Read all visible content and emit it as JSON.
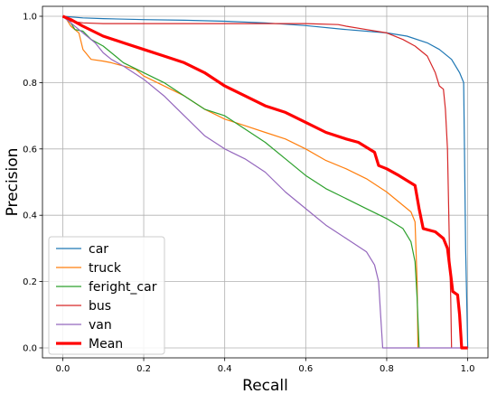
{
  "chart_data": {
    "type": "line",
    "title": "",
    "xlabel": "Recall",
    "ylabel": "Precision",
    "xlim": [
      -0.05,
      1.05
    ],
    "ylim": [
      -0.03,
      1.03
    ],
    "xticks": [
      "0.0",
      "0.2",
      "0.4",
      "0.6",
      "0.8",
      "1.0"
    ],
    "yticks": [
      "0.0",
      "0.2",
      "0.4",
      "0.6",
      "0.8",
      "1.0"
    ],
    "grid": true,
    "legend": "lower-left",
    "series": [
      {
        "name": "car",
        "color": "#1f77b4",
        "width": 1.2,
        "points": [
          [
            0,
            1.0
          ],
          [
            0.05,
            0.995
          ],
          [
            0.1,
            0.993
          ],
          [
            0.2,
            0.99
          ],
          [
            0.3,
            0.988
          ],
          [
            0.4,
            0.985
          ],
          [
            0.5,
            0.98
          ],
          [
            0.6,
            0.972
          ],
          [
            0.7,
            0.96
          ],
          [
            0.8,
            0.95
          ],
          [
            0.85,
            0.94
          ],
          [
            0.9,
            0.92
          ],
          [
            0.93,
            0.9
          ],
          [
            0.96,
            0.87
          ],
          [
            0.98,
            0.83
          ],
          [
            0.99,
            0.8
          ],
          [
            0.992,
            0.6
          ],
          [
            0.995,
            0.3
          ],
          [
            1.0,
            0.0
          ]
        ]
      },
      {
        "name": "truck",
        "color": "#ff7f0e",
        "width": 1.2,
        "points": [
          [
            0,
            1.0
          ],
          [
            0.01,
            0.99
          ],
          [
            0.02,
            0.97
          ],
          [
            0.04,
            0.95
          ],
          [
            0.05,
            0.9
          ],
          [
            0.07,
            0.87
          ],
          [
            0.1,
            0.865
          ],
          [
            0.12,
            0.86
          ],
          [
            0.15,
            0.85
          ],
          [
            0.18,
            0.84
          ],
          [
            0.2,
            0.82
          ],
          [
            0.25,
            0.79
          ],
          [
            0.3,
            0.76
          ],
          [
            0.35,
            0.72
          ],
          [
            0.4,
            0.69
          ],
          [
            0.45,
            0.67
          ],
          [
            0.5,
            0.65
          ],
          [
            0.55,
            0.63
          ],
          [
            0.6,
            0.6
          ],
          [
            0.65,
            0.565
          ],
          [
            0.7,
            0.54
          ],
          [
            0.75,
            0.51
          ],
          [
            0.8,
            0.47
          ],
          [
            0.83,
            0.44
          ],
          [
            0.86,
            0.41
          ],
          [
            0.87,
            0.38
          ],
          [
            0.875,
            0.2
          ],
          [
            0.877,
            0.0
          ]
        ]
      },
      {
        "name": "feright_car",
        "color": "#2ca02c",
        "width": 1.2,
        "points": [
          [
            0,
            1.0
          ],
          [
            0.02,
            0.98
          ],
          [
            0.03,
            0.96
          ],
          [
            0.05,
            0.955
          ],
          [
            0.07,
            0.93
          ],
          [
            0.1,
            0.91
          ],
          [
            0.13,
            0.88
          ],
          [
            0.15,
            0.86
          ],
          [
            0.2,
            0.83
          ],
          [
            0.25,
            0.8
          ],
          [
            0.3,
            0.76
          ],
          [
            0.35,
            0.72
          ],
          [
            0.4,
            0.7
          ],
          [
            0.45,
            0.66
          ],
          [
            0.5,
            0.62
          ],
          [
            0.55,
            0.57
          ],
          [
            0.6,
            0.52
          ],
          [
            0.65,
            0.48
          ],
          [
            0.7,
            0.45
          ],
          [
            0.75,
            0.42
          ],
          [
            0.8,
            0.39
          ],
          [
            0.84,
            0.36
          ],
          [
            0.86,
            0.32
          ],
          [
            0.87,
            0.26
          ],
          [
            0.875,
            0.15
          ],
          [
            0.88,
            0.0
          ]
        ]
      },
      {
        "name": "bus",
        "color": "#d62728",
        "width": 1.2,
        "points": [
          [
            0,
            1.0
          ],
          [
            0.02,
            0.985
          ],
          [
            0.05,
            0.98
          ],
          [
            0.1,
            0.978
          ],
          [
            0.3,
            0.978
          ],
          [
            0.5,
            0.978
          ],
          [
            0.6,
            0.978
          ],
          [
            0.68,
            0.975
          ],
          [
            0.7,
            0.97
          ],
          [
            0.75,
            0.96
          ],
          [
            0.8,
            0.95
          ],
          [
            0.84,
            0.93
          ],
          [
            0.87,
            0.91
          ],
          [
            0.9,
            0.88
          ],
          [
            0.92,
            0.83
          ],
          [
            0.93,
            0.79
          ],
          [
            0.94,
            0.78
          ],
          [
            0.945,
            0.72
          ],
          [
            0.95,
            0.6
          ],
          [
            0.955,
            0.3
          ],
          [
            0.958,
            0.15
          ],
          [
            0.96,
            0.0
          ]
        ]
      },
      {
        "name": "van",
        "color": "#9467bd",
        "width": 1.2,
        "points": [
          [
            0,
            1.0
          ],
          [
            0.02,
            0.98
          ],
          [
            0.05,
            0.95
          ],
          [
            0.08,
            0.92
          ],
          [
            0.1,
            0.89
          ],
          [
            0.12,
            0.87
          ],
          [
            0.15,
            0.85
          ],
          [
            0.2,
            0.81
          ],
          [
            0.25,
            0.76
          ],
          [
            0.3,
            0.7
          ],
          [
            0.35,
            0.64
          ],
          [
            0.4,
            0.6
          ],
          [
            0.45,
            0.57
          ],
          [
            0.5,
            0.53
          ],
          [
            0.55,
            0.47
          ],
          [
            0.6,
            0.42
          ],
          [
            0.65,
            0.37
          ],
          [
            0.7,
            0.33
          ],
          [
            0.75,
            0.29
          ],
          [
            0.77,
            0.25
          ],
          [
            0.78,
            0.2
          ],
          [
            0.785,
            0.1
          ],
          [
            0.79,
            0.0
          ],
          [
            0.88,
            0.0
          ],
          [
            1.0,
            0.0
          ]
        ]
      },
      {
        "name": "Mean",
        "color": "#ff0000",
        "width": 3.2,
        "points": [
          [
            0,
            1.0
          ],
          [
            0.02,
            0.99
          ],
          [
            0.05,
            0.97
          ],
          [
            0.1,
            0.94
          ],
          [
            0.15,
            0.92
          ],
          [
            0.2,
            0.9
          ],
          [
            0.25,
            0.88
          ],
          [
            0.3,
            0.86
          ],
          [
            0.35,
            0.83
          ],
          [
            0.4,
            0.79
          ],
          [
            0.45,
            0.76
          ],
          [
            0.5,
            0.73
          ],
          [
            0.55,
            0.71
          ],
          [
            0.6,
            0.68
          ],
          [
            0.65,
            0.65
          ],
          [
            0.7,
            0.63
          ],
          [
            0.73,
            0.62
          ],
          [
            0.77,
            0.59
          ],
          [
            0.78,
            0.55
          ],
          [
            0.8,
            0.54
          ],
          [
            0.83,
            0.52
          ],
          [
            0.87,
            0.49
          ],
          [
            0.88,
            0.42
          ],
          [
            0.89,
            0.36
          ],
          [
            0.92,
            0.35
          ],
          [
            0.94,
            0.33
          ],
          [
            0.95,
            0.3
          ],
          [
            0.96,
            0.2
          ],
          [
            0.963,
            0.17
          ],
          [
            0.975,
            0.16
          ],
          [
            0.98,
            0.1
          ],
          [
            0.985,
            0.0
          ],
          [
            1.0,
            0.0
          ]
        ]
      }
    ]
  }
}
